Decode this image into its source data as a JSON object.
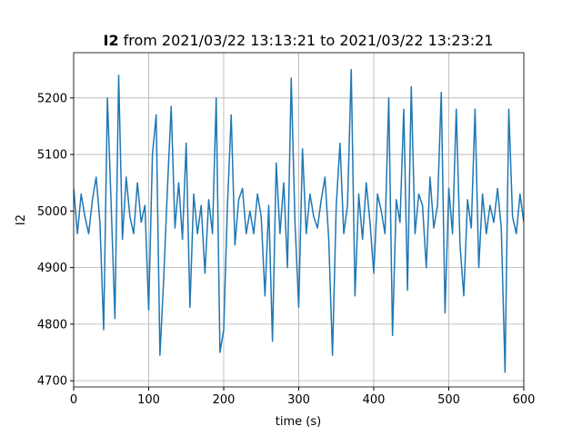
{
  "chart_data": {
    "type": "line",
    "title": {
      "bold": "I2",
      "text": "from 2021/03/22 13:13:21 to 2021/03/22 13:23:21"
    },
    "xlabel": "time (s)",
    "ylabel": "I2",
    "grid": true,
    "xlim": [
      0,
      600
    ],
    "xticks": [
      0,
      100,
      200,
      300,
      400,
      500,
      600
    ],
    "ylim": [
      4689,
      5280
    ],
    "yticks": [
      4700,
      4800,
      4900,
      5000,
      5100,
      5200
    ],
    "x": [
      0,
      5,
      10,
      15,
      20,
      25,
      30,
      35,
      40,
      45,
      50,
      55,
      60,
      65,
      70,
      75,
      80,
      85,
      90,
      95,
      100,
      105,
      110,
      115,
      120,
      125,
      130,
      135,
      140,
      145,
      150,
      155,
      160,
      165,
      170,
      175,
      180,
      185,
      190,
      195,
      200,
      205,
      210,
      215,
      220,
      225,
      230,
      235,
      240,
      245,
      250,
      255,
      260,
      265,
      270,
      275,
      280,
      285,
      290,
      295,
      300,
      305,
      310,
      315,
      320,
      325,
      330,
      335,
      340,
      345,
      350,
      355,
      360,
      365,
      370,
      375,
      380,
      385,
      390,
      395,
      400,
      405,
      410,
      415,
      420,
      425,
      430,
      435,
      440,
      445,
      450,
      455,
      460,
      465,
      470,
      475,
      480,
      485,
      490,
      495,
      500,
      505,
      510,
      515,
      520,
      525,
      530,
      535,
      540,
      545,
      550,
      555,
      560,
      565,
      570,
      575,
      580,
      585,
      590,
      595,
      600
    ],
    "series": [
      {
        "name": "I2",
        "color": "#1f77b4",
        "values": [
          5040,
          4960,
          5030,
          4990,
          4960,
          5020,
          5060,
          4980,
          4790,
          5200,
          5010,
          4810,
          5240,
          4950,
          5060,
          4990,
          4960,
          5050,
          4980,
          5010,
          4825,
          5100,
          5170,
          4745,
          4880,
          5040,
          5185,
          4970,
          5050,
          4950,
          5120,
          4830,
          5030,
          4960,
          5010,
          4890,
          5020,
          4960,
          5200,
          4750,
          4790,
          5010,
          5170,
          4940,
          5020,
          5040,
          4960,
          5000,
          4960,
          5030,
          4990,
          4850,
          5010,
          4770,
          5085,
          4960,
          5050,
          4900,
          5235,
          4980,
          4830,
          5110,
          4960,
          5030,
          4990,
          4970,
          5020,
          5060,
          4950,
          4745,
          5010,
          5120,
          4960,
          5010,
          5250,
          4850,
          5030,
          4950,
          5050,
          4980,
          4890,
          5030,
          5000,
          4960,
          5200,
          4780,
          5020,
          4980,
          5180,
          4860,
          5220,
          4960,
          5030,
          5010,
          4900,
          5060,
          4970,
          5010,
          5210,
          4820,
          5040,
          4960,
          5180,
          4940,
          4850,
          5020,
          4970,
          5180,
          4900,
          5030,
          4960,
          5010,
          4980,
          5040,
          4970,
          4715,
          5180,
          4990,
          4960,
          5030,
          4980
        ]
      }
    ]
  }
}
